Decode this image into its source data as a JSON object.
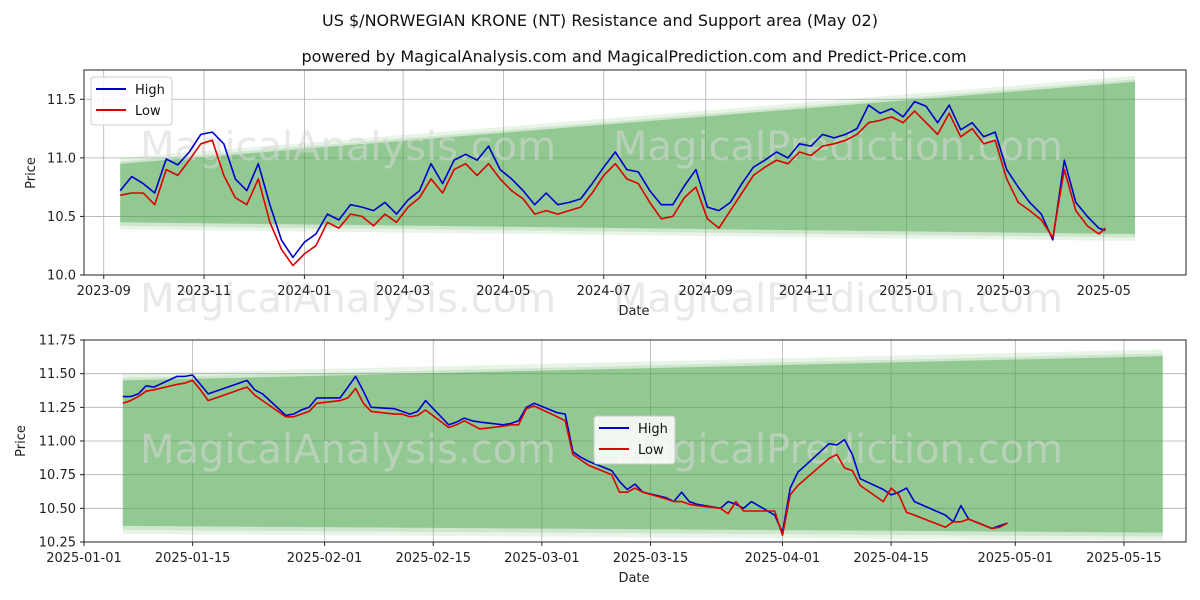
{
  "figure": {
    "title": "US $/NORWEGIAN KRONE (NT) Resistance and Support area (May 02)",
    "subtitle": "powered by MagicalAnalysis.com and MagicalPrediction.com and Predict-Price.com",
    "watermarks": [
      "MagicalAnalysis.com",
      "MagicalPrediction.com"
    ]
  },
  "colors": {
    "high": "#0000cc",
    "low": "#dd0000",
    "band": "#4ca64c",
    "grid": "#b0b0b0"
  },
  "chart_data": [
    {
      "type": "line",
      "xlabel": "Date",
      "ylabel": "Price",
      "ylim": [
        10.0,
        11.75
      ],
      "xlim": [
        "2023-08-20",
        "2025-06-20"
      ],
      "yticks": [
        10.0,
        10.5,
        11.0,
        11.5
      ],
      "xticks": [
        "2023-09",
        "2023-11",
        "2024-01",
        "2024-03",
        "2024-05",
        "2024-07",
        "2024-09",
        "2024-11",
        "2025-01",
        "2025-03",
        "2025-05"
      ],
      "legend": "top-left",
      "grid": true,
      "series": [
        {
          "name": "High",
          "x": [
            "2023-09-11",
            "2023-09-18",
            "2023-09-25",
            "2023-10-02",
            "2023-10-09",
            "2023-10-16",
            "2023-10-23",
            "2023-10-30",
            "2023-11-06",
            "2023-11-13",
            "2023-11-20",
            "2023-11-27",
            "2023-12-04",
            "2023-12-11",
            "2023-12-18",
            "2023-12-25",
            "2024-01-01",
            "2024-01-08",
            "2024-01-15",
            "2024-01-22",
            "2024-01-29",
            "2024-02-05",
            "2024-02-12",
            "2024-02-19",
            "2024-02-26",
            "2024-03-04",
            "2024-03-11",
            "2024-03-18",
            "2024-03-25",
            "2024-04-01",
            "2024-04-08",
            "2024-04-15",
            "2024-04-22",
            "2024-04-29",
            "2024-05-06",
            "2024-05-13",
            "2024-05-20",
            "2024-05-27",
            "2024-06-03",
            "2024-06-10",
            "2024-06-17",
            "2024-06-24",
            "2024-07-01",
            "2024-07-08",
            "2024-07-15",
            "2024-07-22",
            "2024-07-29",
            "2024-08-05",
            "2024-08-12",
            "2024-08-19",
            "2024-08-26",
            "2024-09-02",
            "2024-09-09",
            "2024-09-16",
            "2024-09-23",
            "2024-09-30",
            "2024-10-07",
            "2024-10-14",
            "2024-10-21",
            "2024-10-28",
            "2024-11-04",
            "2024-11-11",
            "2024-11-18",
            "2024-11-25",
            "2024-12-02",
            "2024-12-09",
            "2024-12-16",
            "2024-12-23",
            "2024-12-30",
            "2025-01-06",
            "2025-01-13",
            "2025-01-20",
            "2025-01-27",
            "2025-02-03",
            "2025-02-10",
            "2025-02-17",
            "2025-02-24",
            "2025-03-03",
            "2025-03-10",
            "2025-03-17",
            "2025-03-24",
            "2025-03-31",
            "2025-04-07",
            "2025-04-14",
            "2025-04-21",
            "2025-04-28",
            "2025-05-02"
          ],
          "values": [
            10.72,
            10.84,
            10.78,
            10.7,
            10.99,
            10.94,
            11.05,
            11.2,
            11.22,
            11.12,
            10.82,
            10.72,
            10.95,
            10.6,
            10.3,
            10.15,
            10.28,
            10.35,
            10.52,
            10.47,
            10.6,
            10.58,
            10.55,
            10.62,
            10.52,
            10.64,
            10.72,
            10.95,
            10.78,
            10.98,
            11.03,
            10.98,
            11.1,
            10.9,
            10.82,
            10.72,
            10.6,
            10.7,
            10.6,
            10.62,
            10.65,
            10.78,
            10.92,
            11.05,
            10.9,
            10.88,
            10.72,
            10.6,
            10.6,
            10.76,
            10.9,
            10.58,
            10.55,
            10.62,
            10.78,
            10.92,
            10.98,
            11.05,
            11.0,
            11.12,
            11.1,
            11.2,
            11.17,
            11.2,
            11.25,
            11.45,
            11.38,
            11.42,
            11.35,
            11.48,
            11.44,
            11.3,
            11.45,
            11.24,
            11.3,
            11.18,
            11.22,
            10.9,
            10.75,
            10.62,
            10.52,
            10.3,
            10.98,
            10.62,
            10.5,
            10.4,
            10.38
          ]
        },
        {
          "name": "Low",
          "x": [
            "2023-09-11",
            "2023-09-18",
            "2023-09-25",
            "2023-10-02",
            "2023-10-09",
            "2023-10-16",
            "2023-10-23",
            "2023-10-30",
            "2023-11-06",
            "2023-11-13",
            "2023-11-20",
            "2023-11-27",
            "2023-12-04",
            "2023-12-11",
            "2023-12-18",
            "2023-12-25",
            "2024-01-01",
            "2024-01-08",
            "2024-01-15",
            "2024-01-22",
            "2024-01-29",
            "2024-02-05",
            "2024-02-12",
            "2024-02-19",
            "2024-02-26",
            "2024-03-04",
            "2024-03-11",
            "2024-03-18",
            "2024-03-25",
            "2024-04-01",
            "2024-04-08",
            "2024-04-15",
            "2024-04-22",
            "2024-04-29",
            "2024-05-06",
            "2024-05-13",
            "2024-05-20",
            "2024-05-27",
            "2024-06-03",
            "2024-06-10",
            "2024-06-17",
            "2024-06-24",
            "2024-07-01",
            "2024-07-08",
            "2024-07-15",
            "2024-07-22",
            "2024-07-29",
            "2024-08-05",
            "2024-08-12",
            "2024-08-19",
            "2024-08-26",
            "2024-09-02",
            "2024-09-09",
            "2024-09-16",
            "2024-09-23",
            "2024-09-30",
            "2024-10-07",
            "2024-10-14",
            "2024-10-21",
            "2024-10-28",
            "2024-11-04",
            "2024-11-11",
            "2024-11-18",
            "2024-11-25",
            "2024-12-02",
            "2024-12-09",
            "2024-12-16",
            "2024-12-23",
            "2024-12-30",
            "2025-01-06",
            "2025-01-13",
            "2025-01-20",
            "2025-01-27",
            "2025-02-03",
            "2025-02-10",
            "2025-02-17",
            "2025-02-24",
            "2025-03-03",
            "2025-03-10",
            "2025-03-17",
            "2025-03-24",
            "2025-03-31",
            "2025-04-07",
            "2025-04-14",
            "2025-04-21",
            "2025-04-28",
            "2025-05-02"
          ],
          "values": [
            10.68,
            10.7,
            10.7,
            10.6,
            10.9,
            10.85,
            10.98,
            11.12,
            11.15,
            10.85,
            10.66,
            10.6,
            10.82,
            10.45,
            10.22,
            10.08,
            10.18,
            10.25,
            10.45,
            10.4,
            10.52,
            10.5,
            10.42,
            10.52,
            10.45,
            10.58,
            10.66,
            10.82,
            10.7,
            10.9,
            10.95,
            10.85,
            10.95,
            10.82,
            10.72,
            10.65,
            10.52,
            10.55,
            10.52,
            10.55,
            10.58,
            10.7,
            10.85,
            10.95,
            10.82,
            10.78,
            10.62,
            10.48,
            10.5,
            10.66,
            10.75,
            10.48,
            10.4,
            10.55,
            10.7,
            10.85,
            10.92,
            10.98,
            10.95,
            11.05,
            11.02,
            11.1,
            11.12,
            11.15,
            11.2,
            11.3,
            11.32,
            11.35,
            11.3,
            11.4,
            11.3,
            11.2,
            11.38,
            11.18,
            11.25,
            11.12,
            11.15,
            10.82,
            10.62,
            10.55,
            10.47,
            10.32,
            10.9,
            10.55,
            10.42,
            10.35,
            10.4
          ]
        }
      ],
      "band": {
        "start": "2023-09-11",
        "end": "2025-05-20",
        "upper_start": 10.95,
        "upper_end": 11.65,
        "lower_start": 10.45,
        "lower_end": 10.35
      }
    },
    {
      "type": "line",
      "xlabel": "Date",
      "ylabel": "Price",
      "ylim": [
        10.25,
        11.75
      ],
      "xlim": [
        "2025-01-01",
        "2025-05-23"
      ],
      "yticks": [
        10.25,
        10.5,
        10.75,
        11.0,
        11.25,
        11.5,
        11.75
      ],
      "xticks": [
        "2025-01-01",
        "2025-01-15",
        "2025-02-01",
        "2025-02-15",
        "2025-03-01",
        "2025-03-15",
        "2025-04-01",
        "2025-04-15",
        "2025-05-01",
        "2025-05-15"
      ],
      "legend": "center",
      "grid": true,
      "series": [
        {
          "name": "High",
          "x": [
            "2025-01-06",
            "2025-01-07",
            "2025-01-08",
            "2025-01-09",
            "2025-01-10",
            "2025-01-13",
            "2025-01-14",
            "2025-01-15",
            "2025-01-16",
            "2025-01-17",
            "2025-01-21",
            "2025-01-22",
            "2025-01-23",
            "2025-01-24",
            "2025-01-27",
            "2025-01-28",
            "2025-01-29",
            "2025-01-30",
            "2025-01-31",
            "2025-02-03",
            "2025-02-04",
            "2025-02-05",
            "2025-02-06",
            "2025-02-07",
            "2025-02-10",
            "2025-02-11",
            "2025-02-12",
            "2025-02-13",
            "2025-02-14",
            "2025-02-17",
            "2025-02-18",
            "2025-02-19",
            "2025-02-20",
            "2025-02-21",
            "2025-02-24",
            "2025-02-25",
            "2025-02-26",
            "2025-02-27",
            "2025-02-28",
            "2025-03-03",
            "2025-03-04",
            "2025-03-05",
            "2025-03-06",
            "2025-03-07",
            "2025-03-10",
            "2025-03-11",
            "2025-03-12",
            "2025-03-13",
            "2025-03-14",
            "2025-03-17",
            "2025-03-18",
            "2025-03-19",
            "2025-03-20",
            "2025-03-21",
            "2025-03-24",
            "2025-03-25",
            "2025-03-26",
            "2025-03-27",
            "2025-03-28",
            "2025-03-31",
            "2025-04-01",
            "2025-04-02",
            "2025-04-03",
            "2025-04-04",
            "2025-04-07",
            "2025-04-08",
            "2025-04-09",
            "2025-04-10",
            "2025-04-11",
            "2025-04-14",
            "2025-04-15",
            "2025-04-16",
            "2025-04-17",
            "2025-04-18",
            "2025-04-22",
            "2025-04-23",
            "2025-04-24",
            "2025-04-25",
            "2025-04-28",
            "2025-04-29",
            "2025-04-30"
          ],
          "values": [
            11.33,
            11.33,
            11.35,
            11.41,
            11.4,
            11.48,
            11.48,
            11.49,
            11.42,
            11.35,
            11.43,
            11.45,
            11.38,
            11.35,
            11.19,
            11.2,
            11.23,
            11.25,
            11.32,
            11.32,
            11.4,
            11.48,
            11.37,
            11.25,
            11.24,
            11.22,
            11.2,
            11.22,
            11.3,
            11.12,
            11.14,
            11.17,
            11.15,
            11.14,
            11.12,
            11.13,
            11.15,
            11.25,
            11.28,
            11.21,
            11.2,
            10.92,
            10.88,
            10.85,
            10.78,
            10.7,
            10.64,
            10.68,
            10.62,
            10.58,
            10.55,
            10.62,
            10.55,
            10.53,
            10.5,
            10.55,
            10.53,
            10.5,
            10.55,
            10.45,
            10.32,
            10.65,
            10.77,
            10.82,
            10.98,
            10.97,
            11.01,
            10.9,
            10.72,
            10.64,
            10.6,
            10.62,
            10.65,
            10.55,
            10.45,
            10.4,
            10.52,
            10.42,
            10.35,
            10.37,
            10.39
          ]
        },
        {
          "name": "Low",
          "x": [
            "2025-01-06",
            "2025-01-07",
            "2025-01-08",
            "2025-01-09",
            "2025-01-10",
            "2025-01-13",
            "2025-01-14",
            "2025-01-15",
            "2025-01-16",
            "2025-01-17",
            "2025-01-21",
            "2025-01-22",
            "2025-01-23",
            "2025-01-24",
            "2025-01-27",
            "2025-01-28",
            "2025-01-29",
            "2025-01-30",
            "2025-01-31",
            "2025-02-03",
            "2025-02-04",
            "2025-02-05",
            "2025-02-06",
            "2025-02-07",
            "2025-02-10",
            "2025-02-11",
            "2025-02-12",
            "2025-02-13",
            "2025-02-14",
            "2025-02-17",
            "2025-02-18",
            "2025-02-19",
            "2025-02-20",
            "2025-02-21",
            "2025-02-24",
            "2025-02-25",
            "2025-02-26",
            "2025-02-27",
            "2025-02-28",
            "2025-03-03",
            "2025-03-04",
            "2025-03-05",
            "2025-03-06",
            "2025-03-07",
            "2025-03-10",
            "2025-03-11",
            "2025-03-12",
            "2025-03-13",
            "2025-03-14",
            "2025-03-17",
            "2025-03-18",
            "2025-03-19",
            "2025-03-20",
            "2025-03-21",
            "2025-03-24",
            "2025-03-25",
            "2025-03-26",
            "2025-03-27",
            "2025-03-28",
            "2025-03-31",
            "2025-04-01",
            "2025-04-02",
            "2025-04-03",
            "2025-04-04",
            "2025-04-07",
            "2025-04-08",
            "2025-04-09",
            "2025-04-10",
            "2025-04-11",
            "2025-04-14",
            "2025-04-15",
            "2025-04-16",
            "2025-04-17",
            "2025-04-18",
            "2025-04-22",
            "2025-04-23",
            "2025-04-24",
            "2025-04-25",
            "2025-04-28",
            "2025-04-29",
            "2025-04-30"
          ],
          "values": [
            11.28,
            11.3,
            11.33,
            11.37,
            11.38,
            11.42,
            11.43,
            11.45,
            11.38,
            11.3,
            11.38,
            11.4,
            11.34,
            11.3,
            11.18,
            11.18,
            11.2,
            11.22,
            11.28,
            11.3,
            11.32,
            11.39,
            11.28,
            11.22,
            11.2,
            11.2,
            11.18,
            11.19,
            11.23,
            11.1,
            11.12,
            11.15,
            11.12,
            11.09,
            11.11,
            11.12,
            11.12,
            11.24,
            11.26,
            11.18,
            11.15,
            10.9,
            10.86,
            10.82,
            10.75,
            10.62,
            10.62,
            10.65,
            10.62,
            10.57,
            10.55,
            10.55,
            10.53,
            10.52,
            10.5,
            10.46,
            10.55,
            10.48,
            10.48,
            10.48,
            10.3,
            10.6,
            10.67,
            10.72,
            10.87,
            10.9,
            10.8,
            10.78,
            10.67,
            10.55,
            10.65,
            10.6,
            10.47,
            10.45,
            10.36,
            10.4,
            10.4,
            10.42,
            10.35,
            10.36,
            10.39
          ]
        }
      ],
      "band": {
        "start": "2025-01-06",
        "end": "2025-05-20",
        "upper_start": 11.45,
        "upper_end": 11.63,
        "lower_start": 10.37,
        "lower_end": 10.32
      }
    }
  ]
}
